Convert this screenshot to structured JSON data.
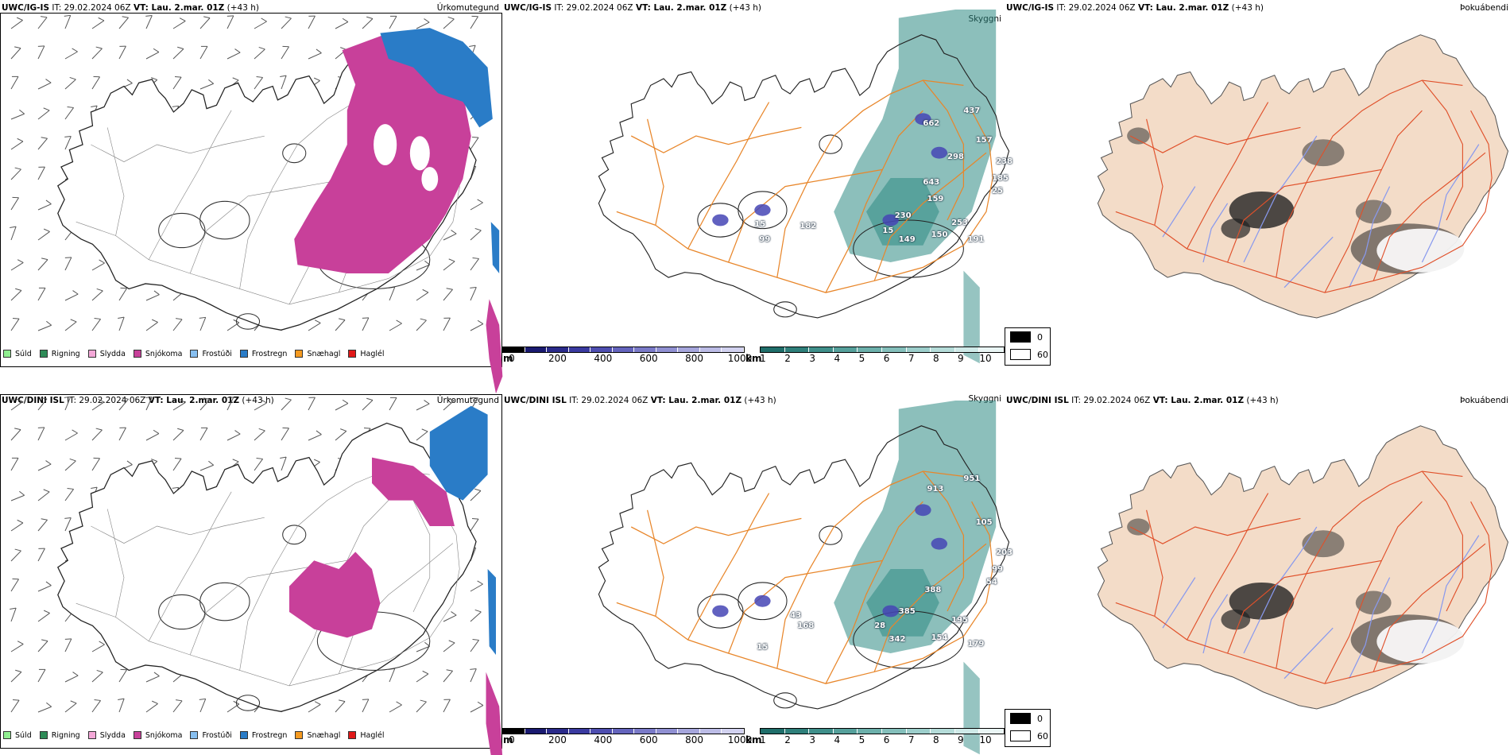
{
  "rows": [
    {
      "model": "UWC/IG-IS",
      "run": "IT: 29.02.2024 06Z",
      "valid": "VT: Lau. 2.mar. 01Z",
      "lead": "(+43 h)",
      "peaks": [
        "662",
        "437",
        "157",
        "298",
        "238",
        "185",
        "643",
        "159",
        "25",
        "230",
        "253",
        "15",
        "149",
        "150",
        "191",
        "182",
        "99",
        "15"
      ]
    },
    {
      "model": "UWC/DINI ISL",
      "run": "IT: 29.02.2024 06Z",
      "valid": "VT: Lau. 2.mar. 01Z",
      "lead": "(+43 h)",
      "peaks": [
        "913",
        "951",
        "105",
        "203",
        "99",
        "54",
        "388",
        "385",
        "195",
        "28",
        "342",
        "154",
        "179",
        "168",
        "15",
        "43"
      ]
    }
  ],
  "fields": {
    "precip_type": "Úrkomutegund",
    "visibility": "Skyggni",
    "fog": "Þokuábendi"
  },
  "precip_legend": [
    {
      "label": "Súld",
      "color": "#90ee90"
    },
    {
      "label": "Rigning",
      "color": "#2e8b57"
    },
    {
      "label": "Slydda",
      "color": "#f4a8d8"
    },
    {
      "label": "Snjókoma",
      "color": "#c8409a"
    },
    {
      "label": "Frostúði",
      "color": "#87bff0"
    },
    {
      "label": "Frostregn",
      "color": "#2a7cc7"
    },
    {
      "label": "Snæhagl",
      "color": "#f59a20"
    },
    {
      "label": "Haglél",
      "color": "#e01818"
    }
  ],
  "ceiling_scale": {
    "unit": "m",
    "ticks": [
      "0",
      "200",
      "400",
      "600",
      "800",
      "1000"
    ],
    "colors": [
      "#000000",
      "#1a1a70",
      "#2a2a8a",
      "#3a3aa0",
      "#4e4eb0",
      "#6464bd",
      "#7a7ac8",
      "#9090d2",
      "#a6a6dc",
      "#bcbce6",
      "#d2d2f0"
    ]
  },
  "visibility_scale": {
    "unit": "km",
    "ticks": [
      "1",
      "2",
      "3",
      "4",
      "5",
      "6",
      "7",
      "8",
      "9",
      "10"
    ],
    "colors": [
      "#1f6e6a",
      "#2e7f7a",
      "#3f8f8a",
      "#55a09b",
      "#6cb0ab",
      "#84bfbb",
      "#9ccecb",
      "#b5dcd9",
      "#cfeae8",
      "#eaf6f5"
    ]
  },
  "fog_legend": [
    {
      "label": "0",
      "color": "#000000"
    },
    {
      "label": "60",
      "color": "#ffffff"
    }
  ],
  "colors": {
    "snow": "#c8409a",
    "freezing_rain": "#2a7cc7",
    "road": "#e8862a",
    "fog_land": "#f3dcc8",
    "fog_road": "#e0502a",
    "river": "#8899ee",
    "visibility": "#2e8a84",
    "ceiling": "#4545b5"
  }
}
